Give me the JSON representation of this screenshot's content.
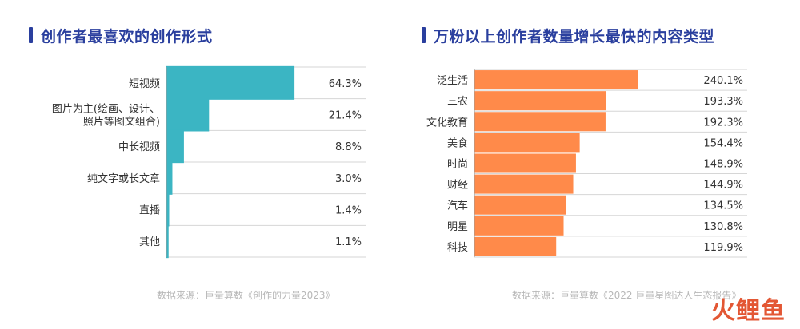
{
  "left_panel": {
    "title": "创作者最喜欢的创作形式",
    "source": "数据来源：巨量算数《创作的力量2023》"
  },
  "right_panel": {
    "title": "万粉以上创作者数量增长最快的内容类型",
    "source": "数据来源：巨量算数《2022 巨量星图达人生态报告》"
  },
  "watermark": "火鲤鱼",
  "colors": {
    "title": "#2a3f9e",
    "left_bar": "#3bb5c3",
    "right_bar": "#ff8a4a",
    "grid": "#d6d6d6"
  },
  "chart_data": [
    {
      "type": "bar",
      "orientation": "horizontal",
      "title": "创作者最喜欢的创作形式",
      "categories": [
        [
          "短视频"
        ],
        [
          "图片为主(绘画、设计、",
          "照片等图文组合)"
        ],
        [
          "中长视频"
        ],
        [
          "纯文字或长文章"
        ],
        [
          "直播"
        ],
        [
          "其他"
        ]
      ],
      "values": [
        64.3,
        21.4,
        8.8,
        3.0,
        1.4,
        1.1
      ],
      "value_labels": [
        "64.3%",
        "21.4%",
        "8.8%",
        "3.0%",
        "1.4%",
        "1.1%"
      ],
      "xlim": [
        0,
        100
      ],
      "unit": "%"
    },
    {
      "type": "bar",
      "orientation": "horizontal",
      "title": "万粉以上创作者数量增长最快的内容类型",
      "categories": [
        [
          "泛生活"
        ],
        [
          "三农"
        ],
        [
          "文化教育"
        ],
        [
          "美食"
        ],
        [
          "时尚"
        ],
        [
          "财经"
        ],
        [
          "汽车"
        ],
        [
          "明星"
        ],
        [
          "科技"
        ]
      ],
      "values": [
        240.1,
        193.3,
        192.3,
        154.4,
        148.9,
        144.9,
        134.5,
        130.8,
        119.9
      ],
      "value_labels": [
        "240.1%",
        "193.3%",
        "192.3%",
        "154.4%",
        "148.9%",
        "144.9%",
        "134.5%",
        "130.8%",
        "119.9%"
      ],
      "xlim": [
        0,
        400
      ],
      "unit": "%"
    }
  ]
}
